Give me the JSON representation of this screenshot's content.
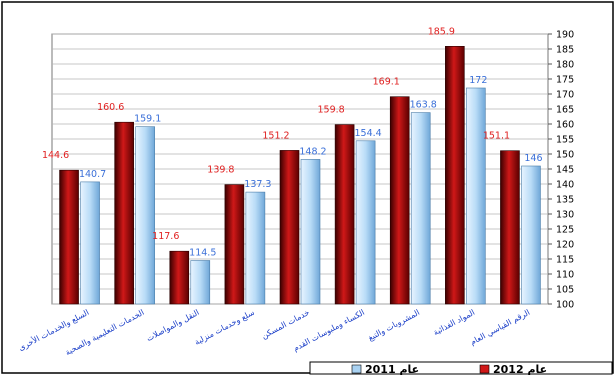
{
  "chart_data": {
    "type": "bar",
    "title": "",
    "xlabel": "",
    "ylabel": "",
    "ylim": [
      100,
      190
    ],
    "y_tick_step": 5,
    "y_axis_side": "right",
    "grid": true,
    "legend_position": "bottom-right",
    "categories": [
      "السلع والخدمات الأخرى",
      "الخدمات التعليمية والصحية",
      "النقل والمواصلات",
      "سلع وخدمات منزلية",
      "خدمات المسكن",
      "الكساء وملبوسات القدم",
      "المشروبات والتبغ",
      "المواد الغذائية",
      "الرقم القياسي العام"
    ],
    "series": [
      {
        "name": "عام 2012",
        "color": "#d01818",
        "label_color": "#e02020",
        "values": [
          144.6,
          160.6,
          117.6,
          139.8,
          151.2,
          159.8,
          169.1,
          185.9,
          151.1
        ]
      },
      {
        "name": "عام 2011",
        "color": "#a9d2f2",
        "label_color": "#3a6fd8",
        "values": [
          140.7,
          159.1,
          114.5,
          137.3,
          148.2,
          154.4,
          163.8,
          172,
          146.0
        ]
      }
    ]
  }
}
